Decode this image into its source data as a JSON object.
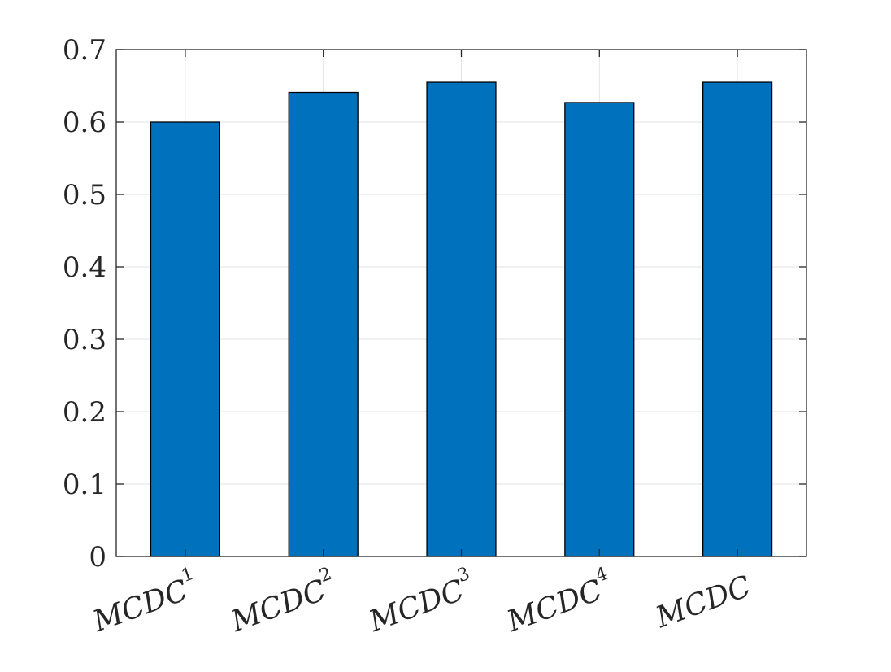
{
  "chart_data": {
    "type": "bar",
    "title": "",
    "xlabel": "",
    "ylabel": "",
    "categories": [
      {
        "base": "MCDC",
        "sup": "1"
      },
      {
        "base": "MCDC",
        "sup": "2"
      },
      {
        "base": "MCDC",
        "sup": "3"
      },
      {
        "base": "MCDC",
        "sup": "4"
      },
      {
        "base": "MCDC",
        "sup": ""
      }
    ],
    "values": [
      0.6,
      0.641,
      0.655,
      0.627,
      0.655
    ],
    "ylim": [
      0,
      0.7
    ],
    "yticks": [
      "0",
      "0.1",
      "0.2",
      "0.3",
      "0.4",
      "0.5",
      "0.6",
      "0.7"
    ],
    "grid": true,
    "bar_color": "#0072BD",
    "bar_edge_color": "#000000",
    "grid_color": "#e3e3e3",
    "axis_color": "#262626"
  }
}
